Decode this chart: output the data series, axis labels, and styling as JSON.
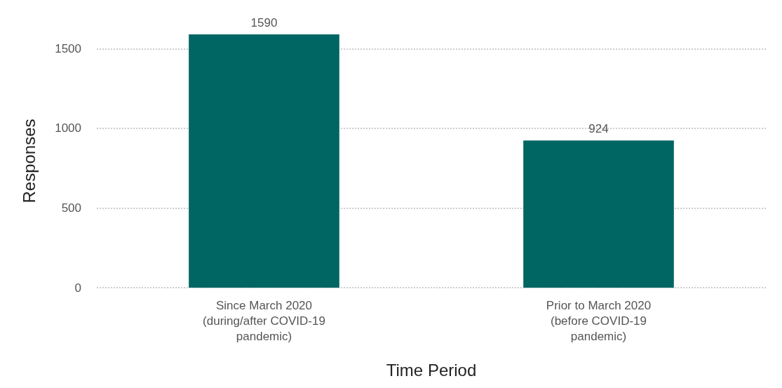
{
  "chart_data": {
    "type": "bar",
    "xlabel": "Time Period",
    "ylabel": "Responses",
    "categories": [
      "Since March 2020\n(during/after COVID-19\npandemic)",
      "Prior to March 2020\n(before COVID-19\npandemic)"
    ],
    "values": [
      1590,
      924
    ],
    "color": "#006663",
    "ylim": [
      0,
      1590
    ],
    "yticks": [
      0,
      500,
      1000,
      1500
    ],
    "grid": "y",
    "data_labels": true
  }
}
